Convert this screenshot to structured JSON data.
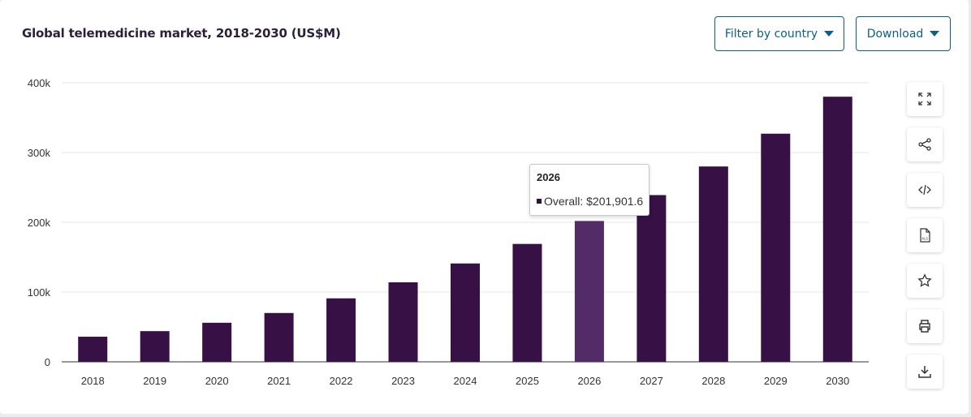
{
  "title": "Global telemedicine market, 2018-2030 (US$M)",
  "buttons": {
    "filter_label": "Filter by country",
    "download_label": "Download"
  },
  "toolbar": [
    "expand-icon",
    "share-icon",
    "embed-code-icon",
    "xls-file-icon",
    "star-icon",
    "print-icon",
    "download-icon"
  ],
  "colors": {
    "bar": "#371146",
    "bar_hover": "#532b66",
    "accent": "#0e5f80"
  },
  "tooltip": {
    "year": "2026",
    "series": "Overall",
    "value_text": "$201,901.6"
  },
  "chart_data": {
    "type": "bar",
    "title": "Global telemedicine market, 2018-2030 (US$M)",
    "xlabel": "",
    "ylabel": "",
    "categories": [
      "2018",
      "2019",
      "2020",
      "2021",
      "2022",
      "2023",
      "2024",
      "2025",
      "2026",
      "2027",
      "2028",
      "2029",
      "2030"
    ],
    "series": [
      {
        "name": "Overall",
        "values": [
          36000,
          44000,
          56000,
          70000,
          91000,
          114000,
          141000,
          169000,
          201901.6,
          239000,
          280000,
          327000,
          380000
        ]
      }
    ],
    "ylim": [
      0,
      400000
    ],
    "yticks": [
      0,
      100000,
      200000,
      300000,
      400000
    ],
    "ytick_labels": [
      "0",
      "100k",
      "200k",
      "300k",
      "400k"
    ],
    "highlighted_category": "2026",
    "grid": true,
    "legend": "none"
  }
}
